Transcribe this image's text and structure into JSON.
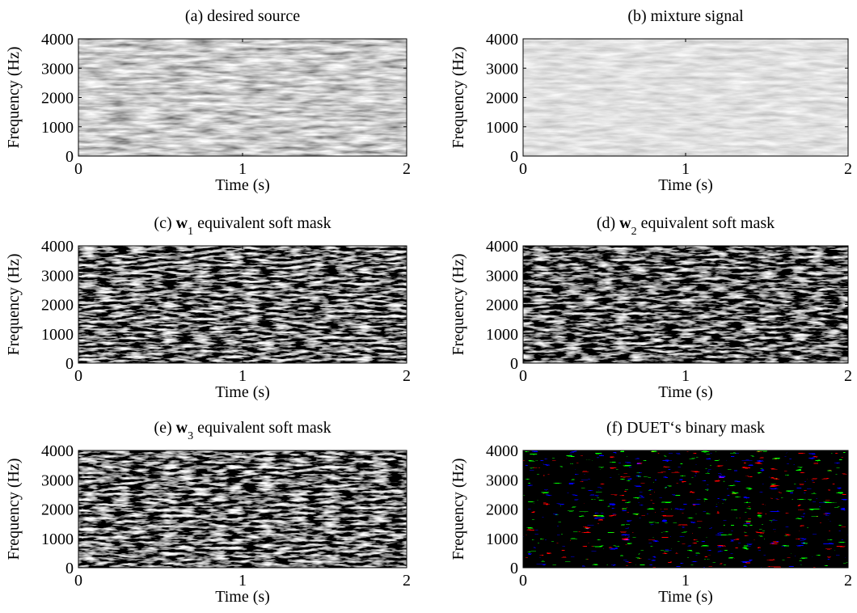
{
  "chart_data": [
    {
      "type": "spectrogram",
      "title": "(a) desired source",
      "xlabel": "Time (s)",
      "ylabel": "Frequency (Hz)",
      "xlim": [
        0,
        2
      ],
      "xticks": [
        0,
        1,
        2
      ],
      "ylim": [
        0,
        4000
      ],
      "yticks": [
        0,
        1000,
        2000,
        3000,
        4000
      ]
    },
    {
      "type": "spectrogram",
      "title": "(b) mixture signal",
      "xlabel": "Time (s)",
      "ylabel": "Frequency (Hz)",
      "xlim": [
        0,
        2
      ],
      "xticks": [
        0,
        1,
        2
      ],
      "ylim": [
        0,
        4000
      ],
      "yticks": [
        0,
        1000,
        2000,
        3000,
        4000
      ]
    },
    {
      "type": "spectrogram",
      "title": [
        "(c) ",
        "w",
        "1",
        " equivalent soft mask"
      ],
      "xlabel": "Time (s)",
      "ylabel": "Frequency (Hz)",
      "xlim": [
        0,
        2
      ],
      "xticks": [
        0,
        1,
        2
      ],
      "ylim": [
        0,
        4000
      ],
      "yticks": [
        0,
        1000,
        2000,
        3000,
        4000
      ]
    },
    {
      "type": "spectrogram",
      "title": [
        "(d) ",
        "w",
        "2",
        " equivalent soft mask"
      ],
      "xlabel": "Time (s)",
      "ylabel": "Frequency (Hz)",
      "xlim": [
        0,
        2
      ],
      "xticks": [
        0,
        1,
        2
      ],
      "ylim": [
        0,
        4000
      ],
      "yticks": [
        0,
        1000,
        2000,
        3000,
        4000
      ]
    },
    {
      "type": "spectrogram",
      "title": [
        "(e) ",
        "w",
        "3",
        " equivalent soft mask"
      ],
      "xlabel": "Time (s)",
      "ylabel": "Frequency (Hz)",
      "xlim": [
        0,
        2
      ],
      "xticks": [
        0,
        1,
        2
      ],
      "ylim": [
        0,
        4000
      ],
      "yticks": [
        0,
        1000,
        2000,
        3000,
        4000
      ]
    },
    {
      "type": "spectrogram",
      "title": "(f) DUET‘s binary mask",
      "xlabel": "Time (s)",
      "ylabel": "Frequency (Hz)",
      "xlim": [
        0,
        2
      ],
      "xticks": [
        0,
        1,
        2
      ],
      "ylim": [
        0,
        4000
      ],
      "yticks": [
        0,
        1000,
        2000,
        3000,
        4000
      ]
    }
  ]
}
